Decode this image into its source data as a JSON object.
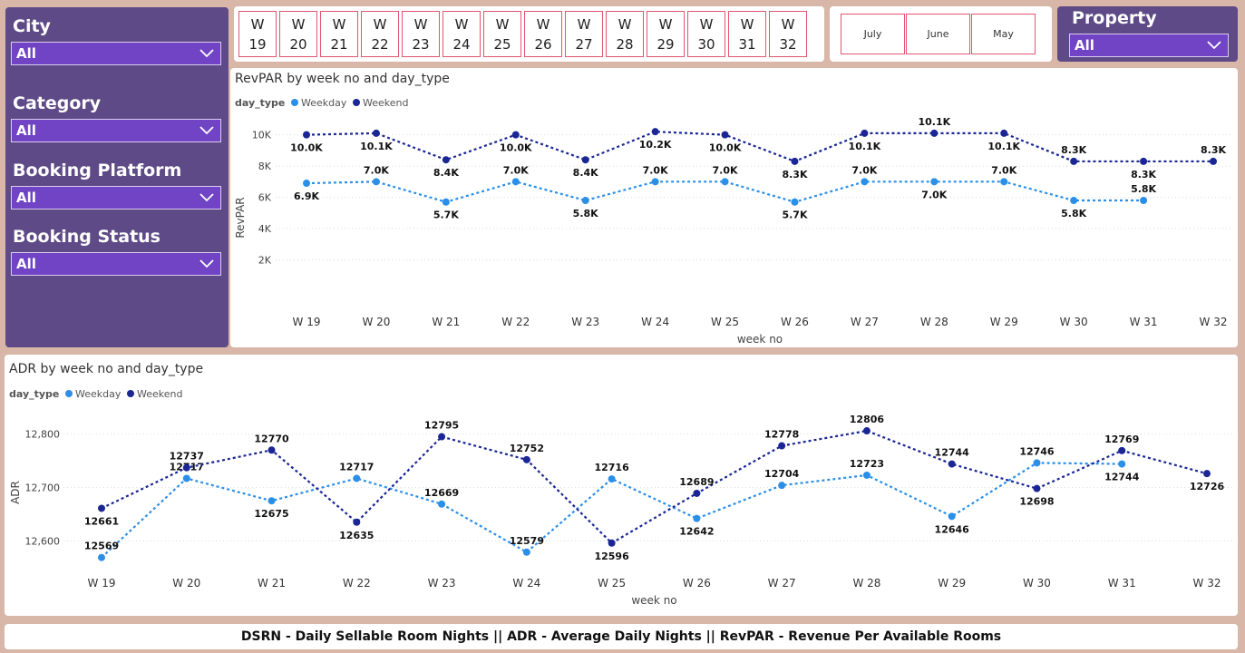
{
  "filters": {
    "city": {
      "title": "City",
      "value": "All"
    },
    "category": {
      "title": "Category",
      "value": "All"
    },
    "booking_platform": {
      "title": "Booking Platform",
      "value": "All"
    },
    "booking_status": {
      "title": "Booking Status",
      "value": "All"
    },
    "property": {
      "title": "Property",
      "value": "All"
    }
  },
  "week_slicer": [
    {
      "line1": "W",
      "line2": "19"
    },
    {
      "line1": "W",
      "line2": "20"
    },
    {
      "line1": "W",
      "line2": "21"
    },
    {
      "line1": "W",
      "line2": "22"
    },
    {
      "line1": "W",
      "line2": "23"
    },
    {
      "line1": "W",
      "line2": "24"
    },
    {
      "line1": "W",
      "line2": "25"
    },
    {
      "line1": "W",
      "line2": "26"
    },
    {
      "line1": "W",
      "line2": "27"
    },
    {
      "line1": "W",
      "line2": "28"
    },
    {
      "line1": "W",
      "line2": "29"
    },
    {
      "line1": "W",
      "line2": "30"
    },
    {
      "line1": "W",
      "line2": "31"
    },
    {
      "line1": "W",
      "line2": "32"
    }
  ],
  "month_slicer": [
    "July",
    "June",
    "May"
  ],
  "colors": {
    "weekday": "#2b8fe8",
    "weekend": "#1a2694"
  },
  "chart_data": [
    {
      "type": "line",
      "title": "RevPAR by week no and day_type",
      "legend_title": "day_type",
      "legend_position": "top-left",
      "xlabel": "week no",
      "ylabel": "RevPAR",
      "categories": [
        "W 19",
        "W 20",
        "W 21",
        "W 22",
        "W 23",
        "W 24",
        "W 25",
        "W 26",
        "W 27",
        "W 28",
        "W 29",
        "W 30",
        "W 31",
        "W 32"
      ],
      "yticks": [
        "2K",
        "4K",
        "6K",
        "8K",
        "10K"
      ],
      "ytick_values": [
        2000,
        4000,
        6000,
        8000,
        10000
      ],
      "ylim": [
        0,
        10500
      ],
      "grid": true,
      "series": [
        {
          "name": "Weekday",
          "values": [
            6900,
            7000,
            5700,
            7000,
            5800,
            7000,
            7000,
            5700,
            7000,
            7000,
            7000,
            5800,
            5800,
            null
          ],
          "labels": [
            "6.9K",
            "7.0K",
            "5.7K",
            "7.0K",
            "5.8K",
            "7.0K",
            "7.0K",
            "5.7K",
            "7.0K",
            "7.0K",
            "7.0K",
            "5.8K",
            "5.8K",
            ""
          ],
          "label_pos": [
            "below",
            "above",
            "below",
            "above",
            "below",
            "above",
            "above",
            "below",
            "above",
            "below",
            "above",
            "below",
            "above",
            ""
          ]
        },
        {
          "name": "Weekend",
          "values": [
            10000,
            10100,
            8400,
            10000,
            8400,
            10200,
            10000,
            8300,
            10100,
            10100,
            10100,
            8300,
            8300,
            8300
          ],
          "labels": [
            "10.0K",
            "10.1K",
            "8.4K",
            "10.0K",
            "8.4K",
            "10.2K",
            "10.0K",
            "8.3K",
            "10.1K",
            "10.1K",
            "10.1K",
            "8.3K",
            "8.3K",
            "8.3K"
          ],
          "label_pos": [
            "below",
            "below",
            "below",
            "below",
            "below",
            "below",
            "below",
            "below",
            "below",
            "above",
            "below",
            "above",
            "below",
            "above"
          ]
        }
      ]
    },
    {
      "type": "line",
      "title": "ADR by week no and day_type",
      "legend_title": "day_type",
      "legend_position": "top-left",
      "xlabel": "week no",
      "ylabel": "ADR",
      "categories": [
        "W 19",
        "W 20",
        "W 21",
        "W 22",
        "W 23",
        "W 24",
        "W 25",
        "W 26",
        "W 27",
        "W 28",
        "W 29",
        "W 30",
        "W 31",
        "W 32"
      ],
      "yticks": [
        "12,600",
        "12,700",
        "12,800"
      ],
      "ytick_values": [
        12600,
        12700,
        12800
      ],
      "ylim": [
        12560,
        12840
      ],
      "grid": true,
      "series": [
        {
          "name": "Weekday",
          "values": [
            12569,
            12717,
            12675,
            12717,
            12669,
            12579,
            12716,
            12642,
            12704,
            12723,
            12646,
            12746,
            12744,
            null
          ],
          "labels": [
            "12569",
            "12717",
            "12675",
            "12717",
            "12669",
            "12579",
            "12716",
            "12642",
            "12704",
            "12723",
            "12646",
            "12746",
            "12744",
            ""
          ],
          "label_pos": [
            "above",
            "above",
            "below",
            "above",
            "above",
            "above",
            "above",
            "below",
            "above",
            "above",
            "below",
            "above",
            "below",
            ""
          ]
        },
        {
          "name": "Weekend",
          "values": [
            12661,
            12737,
            12770,
            12635,
            12795,
            12752,
            12596,
            12689,
            12778,
            12806,
            12744,
            12698,
            12769,
            12726
          ],
          "labels": [
            "12661",
            "12737",
            "12770",
            "12635",
            "12795",
            "12752",
            "12596",
            "12689",
            "12778",
            "12806",
            "12744",
            "12698",
            "12769",
            "12726"
          ],
          "label_pos": [
            "below",
            "above",
            "above",
            "below",
            "above",
            "above",
            "below",
            "above",
            "above",
            "above",
            "above",
            "below",
            "above",
            "below"
          ]
        }
      ]
    }
  ],
  "footer": "DSRN - Daily Sellable Room Nights || ADR - Average Daily Nights || RevPAR - Revenue Per Available Rooms"
}
